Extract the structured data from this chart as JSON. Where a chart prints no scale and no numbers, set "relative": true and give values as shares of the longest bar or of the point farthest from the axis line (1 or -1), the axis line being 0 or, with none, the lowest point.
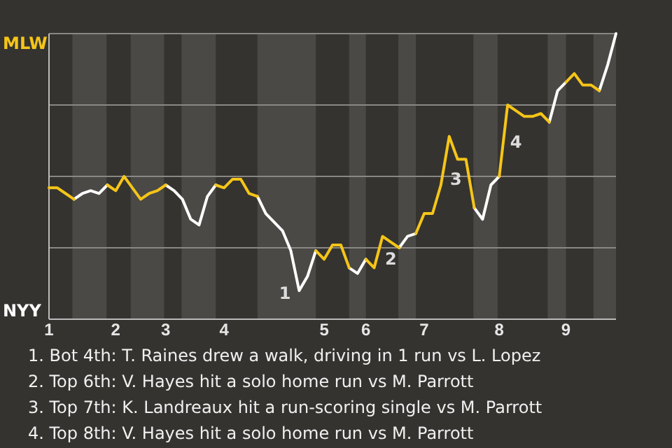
{
  "chart_data": {
    "type": "line",
    "categories": [
      "1",
      null,
      null,
      null,
      null,
      null,
      null,
      null,
      "2",
      null,
      null,
      null,
      null,
      null,
      "3",
      null,
      null,
      null,
      null,
      null,
      null,
      "4",
      null,
      null,
      null,
      null,
      null,
      null,
      null,
      null,
      null,
      null,
      null,
      "5",
      null,
      null,
      null,
      null,
      "6",
      null,
      null,
      null,
      null,
      null,
      null,
      "7",
      null,
      null,
      null,
      null,
      null,
      null,
      null,
      null,
      "8",
      null,
      null,
      null,
      null,
      null,
      null,
      null,
      "9",
      null,
      null,
      null,
      null,
      null,
      null
    ],
    "relative": true,
    "series": [
      {
        "color": "#f5c518",
        "values": [
          0.46,
          0.46,
          0.44,
          0.42,
          null,
          null,
          null,
          0.47,
          0.45,
          0.5,
          0.46,
          0.42,
          0.44,
          0.45,
          0.47,
          null,
          null,
          null,
          null,
          null,
          0.47,
          0.46,
          0.49,
          0.49,
          0.44,
          0.43,
          null,
          null,
          null,
          null,
          null,
          null,
          0.24,
          0.21,
          0.26,
          0.26,
          0.18,
          null,
          0.21,
          0.18,
          0.29,
          0.27,
          0.25,
          null,
          0.3,
          0.37,
          0.37,
          0.47,
          0.64,
          0.56,
          0.56,
          0.39,
          null,
          null,
          0.5,
          0.75,
          0.73,
          0.71,
          0.71,
          0.72,
          0.69,
          null,
          0.83,
          0.86,
          0.82,
          0.82,
          0.8,
          null,
          null
        ]
      },
      {
        "color": "#ffffff",
        "values": [
          null,
          null,
          null,
          0.42,
          0.44,
          0.45,
          0.44,
          0.47,
          null,
          null,
          null,
          null,
          null,
          null,
          0.47,
          0.45,
          0.42,
          0.35,
          0.33,
          0.43,
          0.47,
          null,
          null,
          null,
          null,
          0.43,
          0.37,
          0.34,
          0.31,
          0.24,
          0.1,
          0.15,
          0.24,
          null,
          null,
          null,
          0.18,
          0.16,
          0.21,
          null,
          null,
          null,
          0.25,
          0.29,
          0.3,
          null,
          null,
          null,
          null,
          null,
          null,
          0.39,
          0.35,
          0.47,
          0.5,
          null,
          null,
          null,
          null,
          null,
          0.69,
          0.8,
          0.83,
          null,
          null,
          null,
          0.8,
          0.89,
          1
        ]
      }
    ],
    "grid": "y",
    "annotations": [
      "MLW",
      "NYY",
      "1",
      "2",
      "3",
      "4",
      "1. Bot 4th: T. Raines drew a walk, driving in 1 run vs L. Lopez",
      "2. Top 6th: V. Hayes hit a solo home run vs M. Parrott",
      "3. Top 7th: K. Landreaux hit a run-scoring single vs M. Parrott",
      "4. Top 8th: V. Hayes hit a solo home run vs M. Parrott"
    ],
    "line_style": "solid",
    "marker": "none"
  }
}
